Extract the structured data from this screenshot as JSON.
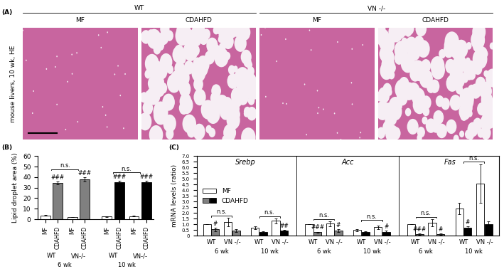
{
  "panel_a": {
    "title": "(A)",
    "ylabel": "mouse livers, 10 wk, HE",
    "genotypes": [
      "WT",
      "VN -/-"
    ],
    "diets": [
      "MF",
      "CDAHFD"
    ]
  },
  "chart_data": [
    {
      "type": "bar",
      "title": "(B)",
      "ylabel": "Lipid droplet area (%)",
      "genotypes": [
        "WT",
        "VN-/-"
      ],
      "periods": [
        "6 wk",
        "10 wk"
      ],
      "series": [
        {
          "name": "MF",
          "colors": [
            "#ffffff",
            "#ffffff"
          ]
        },
        {
          "name": "CDAHFD",
          "colors": [
            "#808080",
            "#000000"
          ]
        }
      ],
      "values": [
        [
          3.5,
          2.0,
          2.5,
          3.0
        ],
        [
          34.5,
          38.0,
          35.5,
          35.0
        ]
      ],
      "errors": [
        [
          0.3,
          0.2,
          0.3,
          0.3
        ],
        [
          1.5,
          1.8,
          1.2,
          1.8
        ]
      ],
      "marks": [
        [
          null,
          null,
          null,
          null
        ],
        [
          "###",
          "###",
          "###",
          "###"
        ]
      ],
      "comparisons": [
        "n.s.",
        "n.s."
      ],
      "ylim": [
        0,
        60
      ],
      "yticks": [
        0,
        10,
        20,
        30,
        40,
        50,
        60
      ]
    },
    {
      "type": "bar",
      "title": "(C)",
      "ylabel": "mRNA levels (ratio)",
      "legend": "center left",
      "genotypes": [
        "WT",
        "VN -/-"
      ],
      "periods": [
        "6 wk",
        "10 wk"
      ],
      "series": [
        {
          "name": "MF",
          "colors": [
            "#ffffff",
            "#ffffff"
          ]
        },
        {
          "name": "CDAHFD",
          "colors": [
            "#808080",
            "#000000"
          ]
        }
      ],
      "genes": [
        {
          "name": "Srebp",
          "values": [
            [
              1.0,
              1.2,
              0.7,
              1.3
            ],
            [
              0.55,
              0.45,
              0.3,
              0.45
            ]
          ],
          "errors": [
            [
              0,
              0.35,
              0.15,
              0.2
            ],
            [
              0.15,
              0.1,
              0.1,
              0.07
            ]
          ],
          "marks": [
            [
              null,
              null,
              null,
              null
            ],
            [
              "#",
              null,
              null,
              "##"
            ]
          ],
          "comparisons": [
            "n.s.",
            "n.s."
          ]
        },
        {
          "name": "Acc",
          "values": [
            [
              1.0,
              1.05,
              0.5,
              0.75
            ],
            [
              0.3,
              0.45,
              0.35,
              0.35
            ]
          ],
          "errors": [
            [
              0,
              0.2,
              0.1,
              0.15
            ],
            [
              0.05,
              0.1,
              0.05,
              0.1
            ]
          ],
          "marks": [
            [
              null,
              null,
              null,
              null
            ],
            [
              "###",
              "#",
              null,
              "#"
            ]
          ],
          "comparisons": [
            "n.s.",
            "n.s."
          ]
        },
        {
          "name": "Fas",
          "values": [
            [
              1.0,
              1.15,
              2.4,
              4.6
            ],
            [
              0.15,
              0.15,
              0.7,
              1.0
            ]
          ],
          "errors": [
            [
              0,
              0.3,
              0.5,
              1.7
            ],
            [
              0.05,
              0.05,
              0.1,
              0.25
            ]
          ],
          "marks": [
            [
              null,
              null,
              null,
              null
            ],
            [
              "###",
              "#",
              "#",
              null
            ]
          ],
          "comparisons": [
            "n.s.",
            "n.s."
          ]
        }
      ],
      "ylim": [
        0,
        7
      ],
      "yticks": [
        0,
        0.5,
        {
          "value": 1,
          "label": "1.0"
        },
        1.5,
        {
          "value": 2,
          "label": "2.0"
        },
        2.5,
        {
          "value": 3,
          "label": "3.0"
        },
        3.5,
        {
          "value": 4,
          "label": "4.0"
        },
        4.5,
        {
          "value": 5,
          "label": "5.0"
        },
        5.5,
        {
          "value": 6,
          "label": "6.0"
        },
        6.5,
        {
          "value": 7,
          "label": "7.0"
        }
      ]
    }
  ]
}
